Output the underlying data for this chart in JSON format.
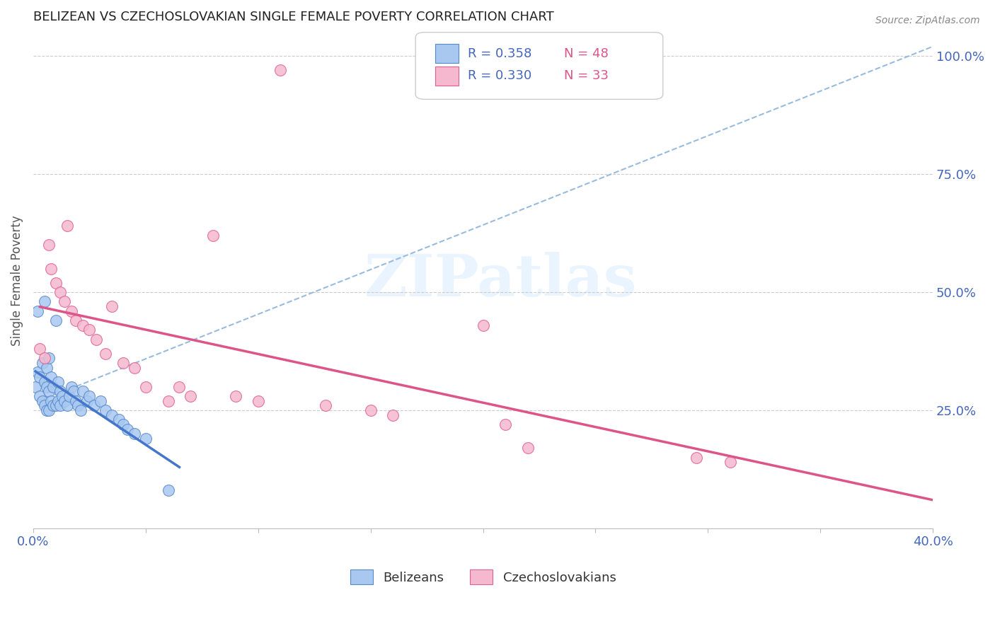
{
  "title": "BELIZEAN VS CZECHOSLOVAKIAN SINGLE FEMALE POVERTY CORRELATION CHART",
  "source": "Source: ZipAtlas.com",
  "ylabel": "Single Female Poverty",
  "yticks": [
    0.0,
    0.25,
    0.5,
    0.75,
    1.0
  ],
  "ytick_labels": [
    "",
    "25.0%",
    "50.0%",
    "75.0%",
    "100.0%"
  ],
  "xlim": [
    0.0,
    0.4
  ],
  "ylim": [
    0.0,
    1.05
  ],
  "belizean_R": 0.358,
  "belizean_N": 48,
  "czechoslovakian_R": 0.33,
  "czechoslovakian_N": 33,
  "belizean_color": "#a8c8f0",
  "czechoslovakian_color": "#f5b8ce",
  "belizean_edge_color": "#5588cc",
  "czechoslovakian_edge_color": "#e06090",
  "belizean_line_color": "#4477cc",
  "czechoslovakian_line_color": "#dd5588",
  "diagonal_color": "#99bbdd",
  "watermark_text": "ZIPatlas",
  "watermark_color": "#ddeeff",
  "legend_text_color": "#333333",
  "axis_tick_color": "#4466bb",
  "background_color": "#ffffff",
  "grid_color": "#cccccc",
  "bel_x": [
    0.001,
    0.002,
    0.002,
    0.003,
    0.003,
    0.004,
    0.004,
    0.005,
    0.005,
    0.005,
    0.006,
    0.006,
    0.006,
    0.007,
    0.007,
    0.007,
    0.008,
    0.008,
    0.009,
    0.009,
    0.01,
    0.01,
    0.011,
    0.011,
    0.012,
    0.012,
    0.013,
    0.014,
    0.015,
    0.016,
    0.017,
    0.018,
    0.019,
    0.02,
    0.021,
    0.022,
    0.024,
    0.025,
    0.027,
    0.03,
    0.032,
    0.035,
    0.038,
    0.04,
    0.042,
    0.045,
    0.05,
    0.06
  ],
  "bel_y": [
    0.3,
    0.33,
    0.46,
    0.28,
    0.32,
    0.27,
    0.35,
    0.26,
    0.31,
    0.48,
    0.25,
    0.3,
    0.34,
    0.25,
    0.29,
    0.36,
    0.27,
    0.32,
    0.26,
    0.3,
    0.26,
    0.44,
    0.27,
    0.31,
    0.26,
    0.29,
    0.28,
    0.27,
    0.26,
    0.28,
    0.3,
    0.29,
    0.27,
    0.26,
    0.25,
    0.29,
    0.27,
    0.28,
    0.26,
    0.27,
    0.25,
    0.24,
    0.23,
    0.22,
    0.21,
    0.2,
    0.19,
    0.08
  ],
  "czk_x": [
    0.003,
    0.005,
    0.007,
    0.008,
    0.01,
    0.012,
    0.014,
    0.015,
    0.017,
    0.019,
    0.022,
    0.025,
    0.028,
    0.032,
    0.035,
    0.04,
    0.045,
    0.05,
    0.06,
    0.065,
    0.07,
    0.08,
    0.09,
    0.1,
    0.11,
    0.13,
    0.15,
    0.16,
    0.2,
    0.21,
    0.22,
    0.295,
    0.31
  ],
  "czk_y": [
    0.38,
    0.36,
    0.6,
    0.55,
    0.52,
    0.5,
    0.48,
    0.64,
    0.46,
    0.44,
    0.43,
    0.42,
    0.4,
    0.37,
    0.47,
    0.35,
    0.34,
    0.3,
    0.27,
    0.3,
    0.28,
    0.62,
    0.28,
    0.27,
    0.97,
    0.26,
    0.25,
    0.24,
    0.43,
    0.22,
    0.17,
    0.15,
    0.14
  ],
  "bel_line_x": [
    0.001,
    0.065
  ],
  "czk_line_x": [
    0.003,
    0.4
  ],
  "diag_line": [
    [
      0.003,
      0.4
    ],
    [
      0.27,
      1.02
    ]
  ]
}
